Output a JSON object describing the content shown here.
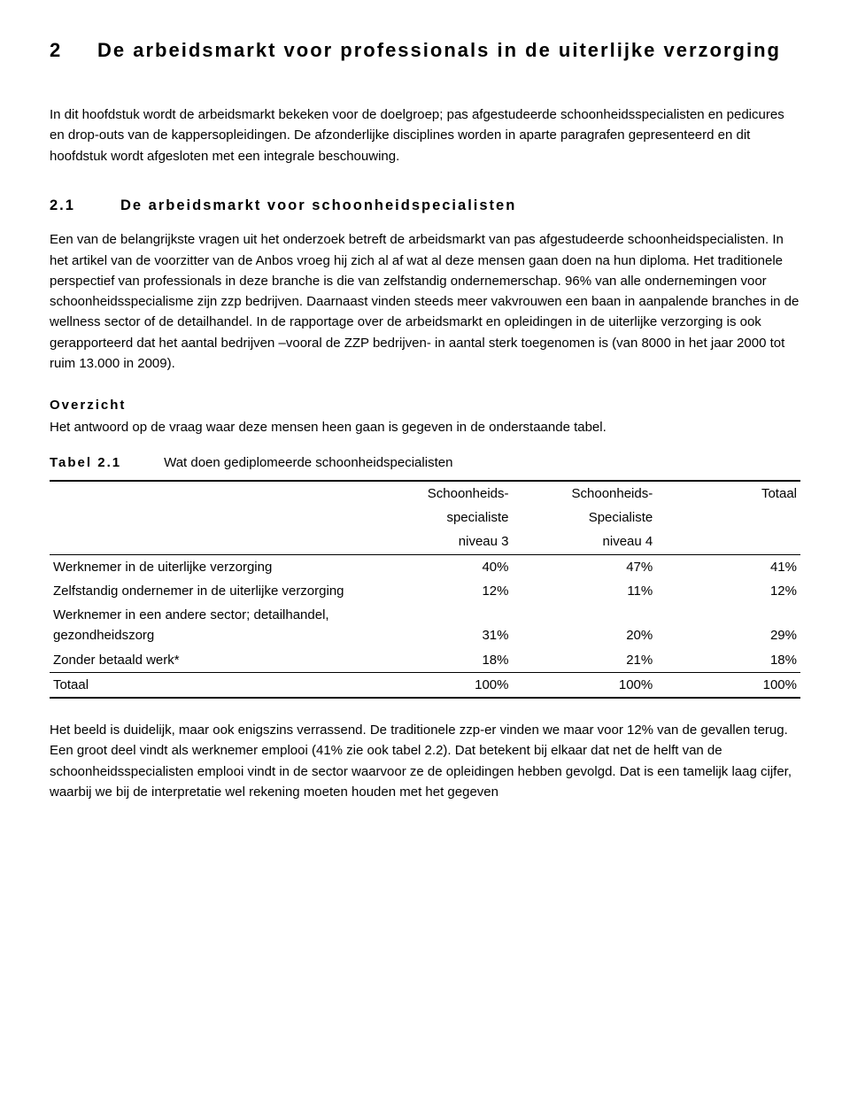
{
  "chapter": {
    "number": "2",
    "title": "De arbeidsmarkt voor professionals in de uiterlijke verzorging"
  },
  "intro_para": "In dit hoofdstuk wordt de arbeidsmarkt bekeken voor de doelgroep; pas afgestudeerde schoonheidsspecialisten en pedicures en drop-outs van de kappersopleidingen. De afzonderlijke disciplines worden in aparte paragrafen gepresenteerd en dit hoofdstuk wordt afgesloten met een integrale beschouwing.",
  "section_2_1": {
    "number": "2.1",
    "title": "De arbeidsmarkt voor schoonheidspecialisten",
    "body": "Een van de belangrijkste vragen uit het onderzoek betreft de arbeidsmarkt van pas afgestudeerde schoonheidspecialisten. In het artikel van de voorzitter van de Anbos vroeg hij zich al af wat al deze mensen gaan doen na hun diploma. Het traditionele perspectief van professionals in deze branche is die van zelfstandig ondernemerschap. 96% van alle ondernemingen voor schoonheidsspecialisme zijn zzp bedrijven. Daarnaast vinden steeds meer vakvrouwen een baan in aanpalende branches in de wellness sector of de detailhandel. In de rapportage over de arbeidsmarkt en opleidingen in de uiterlijke verzorging is ook gerapporteerd dat het aantal bedrijven –vooral de ZZP bedrijven- in aantal sterk toegenomen is (van 8000 in het jaar 2000 tot ruim 13.000 in 2009)."
  },
  "overzicht": {
    "heading": "Overzicht",
    "text": "Het antwoord op de vraag waar deze mensen heen gaan is gegeven in de onderstaande tabel."
  },
  "table21": {
    "label": "Tabel 2.1",
    "caption": "Wat doen gediplomeerde schoonheidspecialisten",
    "columns": {
      "c1": {
        "line1": "Schoonheids-",
        "line2": "specialiste",
        "line3": "niveau 3"
      },
      "c2": {
        "line1": "Schoonheids-",
        "line2": "Specialiste",
        "line3": "niveau 4"
      },
      "c3": {
        "line1": "Totaal"
      }
    },
    "rows": [
      {
        "label": "Werknemer in de uiterlijke verzorging",
        "v1": "40%",
        "v2": "47%",
        "v3": "41%"
      },
      {
        "label": "Zelfstandig ondernemer in de uiterlijke verzorging",
        "v1": "12%",
        "v2": "11%",
        "v3": "12%"
      },
      {
        "label": "Werknemer in een andere sector; detailhandel, gezondheidszorg",
        "v1": "31%",
        "v2": "20%",
        "v3": "29%"
      },
      {
        "label": "Zonder betaald werk*",
        "v1": "18%",
        "v2": "21%",
        "v3": "18%"
      }
    ],
    "total": {
      "label": "Totaal",
      "v1": "100%",
      "v2": "100%",
      "v3": "100%"
    }
  },
  "closing_para": "Het beeld is duidelijk, maar ook enigszins verrassend. De traditionele zzp-er vinden we maar voor 12% van de gevallen terug. Een groot deel vindt als werknemer emplooi (41% zie ook tabel 2.2). Dat betekent bij elkaar dat net de helft van de schoonheidsspecialisten emplooi vindt in de sector waarvoor ze de opleidingen hebben gevolgd. Dat is een tamelijk laag cijfer, waarbij we bij de interpretatie wel rekening moeten houden met het gegeven"
}
